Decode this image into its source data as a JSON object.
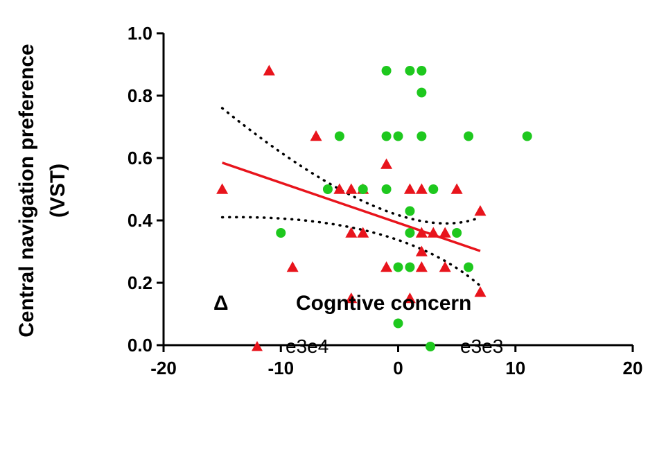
{
  "chart_data": {
    "type": "scatter",
    "xlabel_symbol": "Δ",
    "xlabel": "Cogntive concern",
    "ylabel_line1": "Central navigation preference",
    "ylabel_line2": "(VST)",
    "xlim": [
      -20,
      20
    ],
    "ylim": [
      0.0,
      1.0
    ],
    "xticks": [
      -20,
      -10,
      0,
      10,
      20
    ],
    "xtick_labels": [
      "-20",
      "-10",
      "0",
      "10",
      "20"
    ],
    "yticks": [
      0.0,
      0.2,
      0.4,
      0.6,
      0.8,
      1.0
    ],
    "ytick_labels": [
      "0.0",
      "0.2",
      "0.4",
      "0.6",
      "0.8",
      "1.0"
    ],
    "grid": false,
    "legend_position": "bottom",
    "series": [
      {
        "name": "e3e4",
        "marker": "triangle",
        "color": "#e8141c",
        "points": [
          [
            -15,
            0.5
          ],
          [
            -11,
            0.88
          ],
          [
            -9,
            0.25
          ],
          [
            -7,
            0.67
          ],
          [
            -5,
            0.5
          ],
          [
            -4,
            0.5
          ],
          [
            -4,
            0.36
          ],
          [
            -4,
            0.15
          ],
          [
            -3,
            0.5
          ],
          [
            -3,
            0.36
          ],
          [
            -1,
            0.58
          ],
          [
            -1,
            0.25
          ],
          [
            1,
            0.5
          ],
          [
            1,
            0.15
          ],
          [
            2,
            0.5
          ],
          [
            2,
            0.36
          ],
          [
            2,
            0.3
          ],
          [
            2,
            0.25
          ],
          [
            3,
            0.36
          ],
          [
            4,
            0.36
          ],
          [
            4,
            0.25
          ],
          [
            5,
            0.5
          ],
          [
            7,
            0.43
          ],
          [
            7,
            0.17
          ]
        ]
      },
      {
        "name": "e3e3",
        "marker": "circle",
        "color": "#1ec81e",
        "points": [
          [
            -10,
            0.36
          ],
          [
            -6,
            0.5
          ],
          [
            -5,
            0.67
          ],
          [
            -3,
            0.5
          ],
          [
            -1,
            0.88
          ],
          [
            -1,
            0.67
          ],
          [
            -1,
            0.5
          ],
          [
            0,
            0.67
          ],
          [
            0,
            0.25
          ],
          [
            0,
            0.07
          ],
          [
            1,
            0.88
          ],
          [
            1,
            0.43
          ],
          [
            1,
            0.36
          ],
          [
            1,
            0.25
          ],
          [
            2,
            0.88
          ],
          [
            2,
            0.81
          ],
          [
            2,
            0.67
          ],
          [
            3,
            0.5
          ],
          [
            5,
            0.36
          ],
          [
            6,
            0.67
          ],
          [
            6,
            0.25
          ],
          [
            11,
            0.67
          ]
        ]
      }
    ],
    "regression": {
      "color": "#e8141c",
      "x_range": [
        -15,
        7
      ],
      "fit": [
        0.585,
        0.302
      ],
      "ci_upper": [
        0.76,
        0.41
      ],
      "ci_lower": [
        0.41,
        0.19
      ],
      "ci_upper_mid": [
        0,
        0.445
      ],
      "ci_lower_mid": [
        0,
        0.36
      ]
    }
  }
}
